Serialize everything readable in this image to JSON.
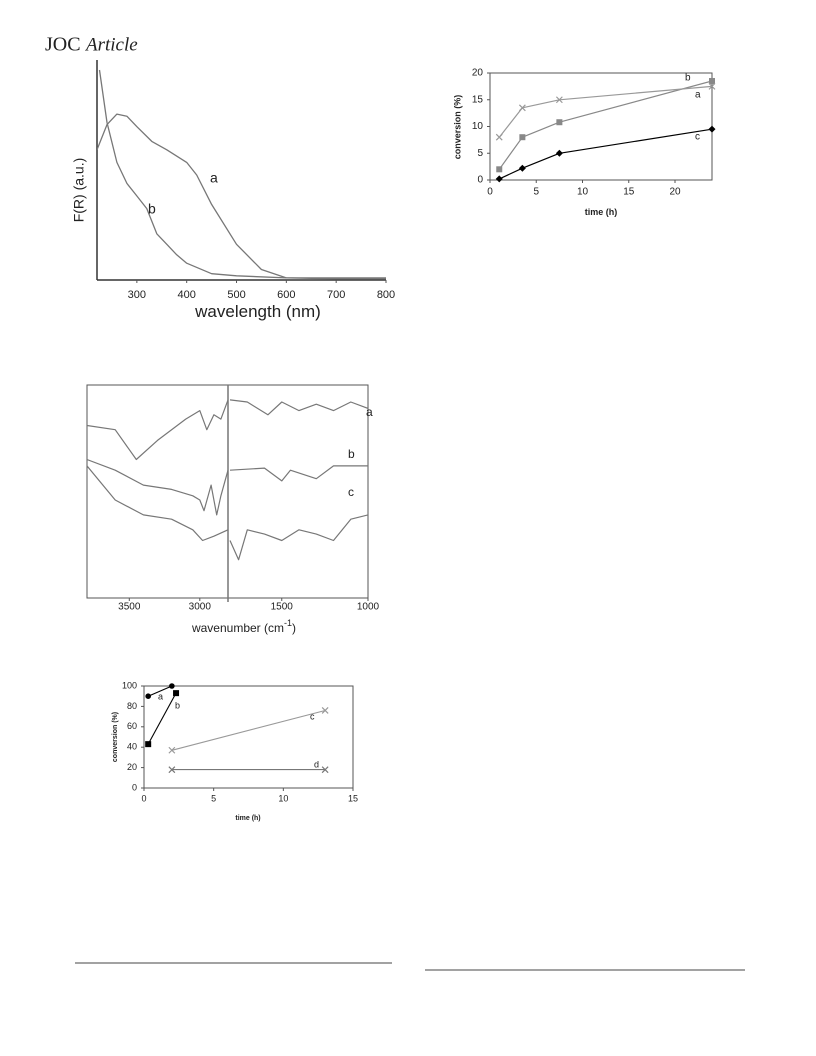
{
  "header": {
    "journal": "JOC",
    "section": "Article"
  },
  "chart_data": [
    {
      "type": "line",
      "xlabel": "wavelength (nm)",
      "ylabel": "F(R) (a.u.)",
      "xlim": [
        220,
        800
      ],
      "xticks": [
        300,
        400,
        500,
        600,
        700,
        800
      ],
      "ylim": [
        0,
        100
      ],
      "series": [
        {
          "name": "a",
          "color": "#777777",
          "x": [
            220,
            240,
            260,
            280,
            300,
            330,
            360,
            400,
            420,
            450,
            500,
            550,
            600,
            700,
            800
          ],
          "values": [
            62,
            74,
            79,
            78,
            73,
            66,
            62,
            56,
            50,
            36,
            17,
            5,
            1,
            0.5,
            0.5
          ]
        },
        {
          "name": "b",
          "color": "#777777",
          "x": [
            225,
            240,
            260,
            280,
            300,
            320,
            340,
            360,
            380,
            400,
            450,
            500,
            600,
            800
          ],
          "values": [
            100,
            75,
            56,
            46,
            40,
            34,
            22,
            17,
            12,
            8,
            3,
            2,
            1,
            1
          ]
        }
      ]
    },
    {
      "type": "line",
      "xlabel": "wavenumber (cm",
      "xlabel_sup": "-1",
      "xlabel_end": ")",
      "ylim": [
        0,
        100
      ],
      "panels": [
        {
          "xlim": [
            3800,
            2800
          ],
          "xticks": [
            3500,
            3000
          ]
        },
        {
          "xlim": [
            1800,
            1000
          ],
          "xticks": [
            1500,
            1000
          ]
        }
      ],
      "series": [
        {
          "name": "a",
          "color": "#777777",
          "x": [
            3800,
            3600,
            3450,
            3300,
            3100,
            3000,
            2950,
            2900,
            2850,
            2800,
            1800,
            1700,
            1580,
            1500,
            1400,
            1300,
            1200,
            1100,
            1000
          ],
          "values": [
            81,
            79,
            65,
            74,
            84,
            88,
            79,
            86,
            84,
            93,
            93,
            92,
            86,
            92,
            88,
            91,
            88,
            92,
            89
          ]
        },
        {
          "name": "b",
          "color": "#777777",
          "x": [
            3800,
            3600,
            3400,
            3200,
            3050,
            3000,
            2970,
            2920,
            2880,
            2850,
            2800,
            1800,
            1600,
            1500,
            1450,
            1300,
            1200,
            1000
          ],
          "values": [
            65,
            60,
            53,
            51,
            48,
            46,
            41,
            53,
            39,
            48,
            60,
            60,
            61,
            55,
            60,
            56,
            62,
            62
          ]
        },
        {
          "name": "c",
          "color": "#777777",
          "x": [
            3800,
            3600,
            3400,
            3200,
            3050,
            2980,
            2900,
            2800,
            1800,
            1750,
            1700,
            1600,
            1500,
            1400,
            1300,
            1200,
            1100,
            1000
          ],
          "values": [
            62,
            46,
            39,
            37,
            32,
            27,
            29,
            32,
            27,
            18,
            32,
            30,
            27,
            32,
            30,
            27,
            37,
            39
          ]
        }
      ]
    },
    {
      "type": "line",
      "xlabel": "time (h)",
      "ylabel": "conversion (%)",
      "xlim": [
        0,
        24
      ],
      "xticks": [
        0,
        5,
        10,
        15,
        20
      ],
      "ylim": [
        0,
        20
      ],
      "yticks": [
        0,
        5,
        10,
        15,
        20
      ],
      "series": [
        {
          "name": "b",
          "color": "#888888",
          "marker": "square",
          "x": [
            1,
            3.5,
            7.5,
            24
          ],
          "values": [
            2,
            8,
            10.8,
            18.5
          ]
        },
        {
          "name": "a",
          "color": "#999999",
          "marker": "cross",
          "x": [
            1,
            3.5,
            7.5,
            24
          ],
          "values": [
            8,
            13.5,
            15,
            17.5
          ]
        },
        {
          "name": "c",
          "color": "#000000",
          "marker": "diamond",
          "x": [
            1,
            3.5,
            7.5,
            24
          ],
          "values": [
            0.2,
            2.2,
            5,
            9.5
          ]
        }
      ]
    },
    {
      "type": "line",
      "xlabel": "time (h)",
      "ylabel": "conversion (%)",
      "xlim": [
        0,
        15
      ],
      "xticks": [
        0,
        5,
        10,
        15
      ],
      "ylim": [
        0,
        100
      ],
      "yticks": [
        0,
        20,
        40,
        60,
        80,
        100
      ],
      "series": [
        {
          "name": "a",
          "color": "#000000",
          "marker": "circle",
          "x": [
            0.3,
            2
          ],
          "values": [
            90,
            100
          ]
        },
        {
          "name": "b",
          "color": "#000000",
          "marker": "square",
          "x": [
            0.3,
            2.3
          ],
          "values": [
            43,
            93
          ]
        },
        {
          "name": "c",
          "color": "#999999",
          "marker": "cross",
          "x": [
            2,
            13
          ],
          "values": [
            37,
            76
          ]
        },
        {
          "name": "d",
          "color": "#777777",
          "marker": "cross",
          "x": [
            2,
            13
          ],
          "values": [
            18,
            18
          ]
        }
      ]
    }
  ]
}
